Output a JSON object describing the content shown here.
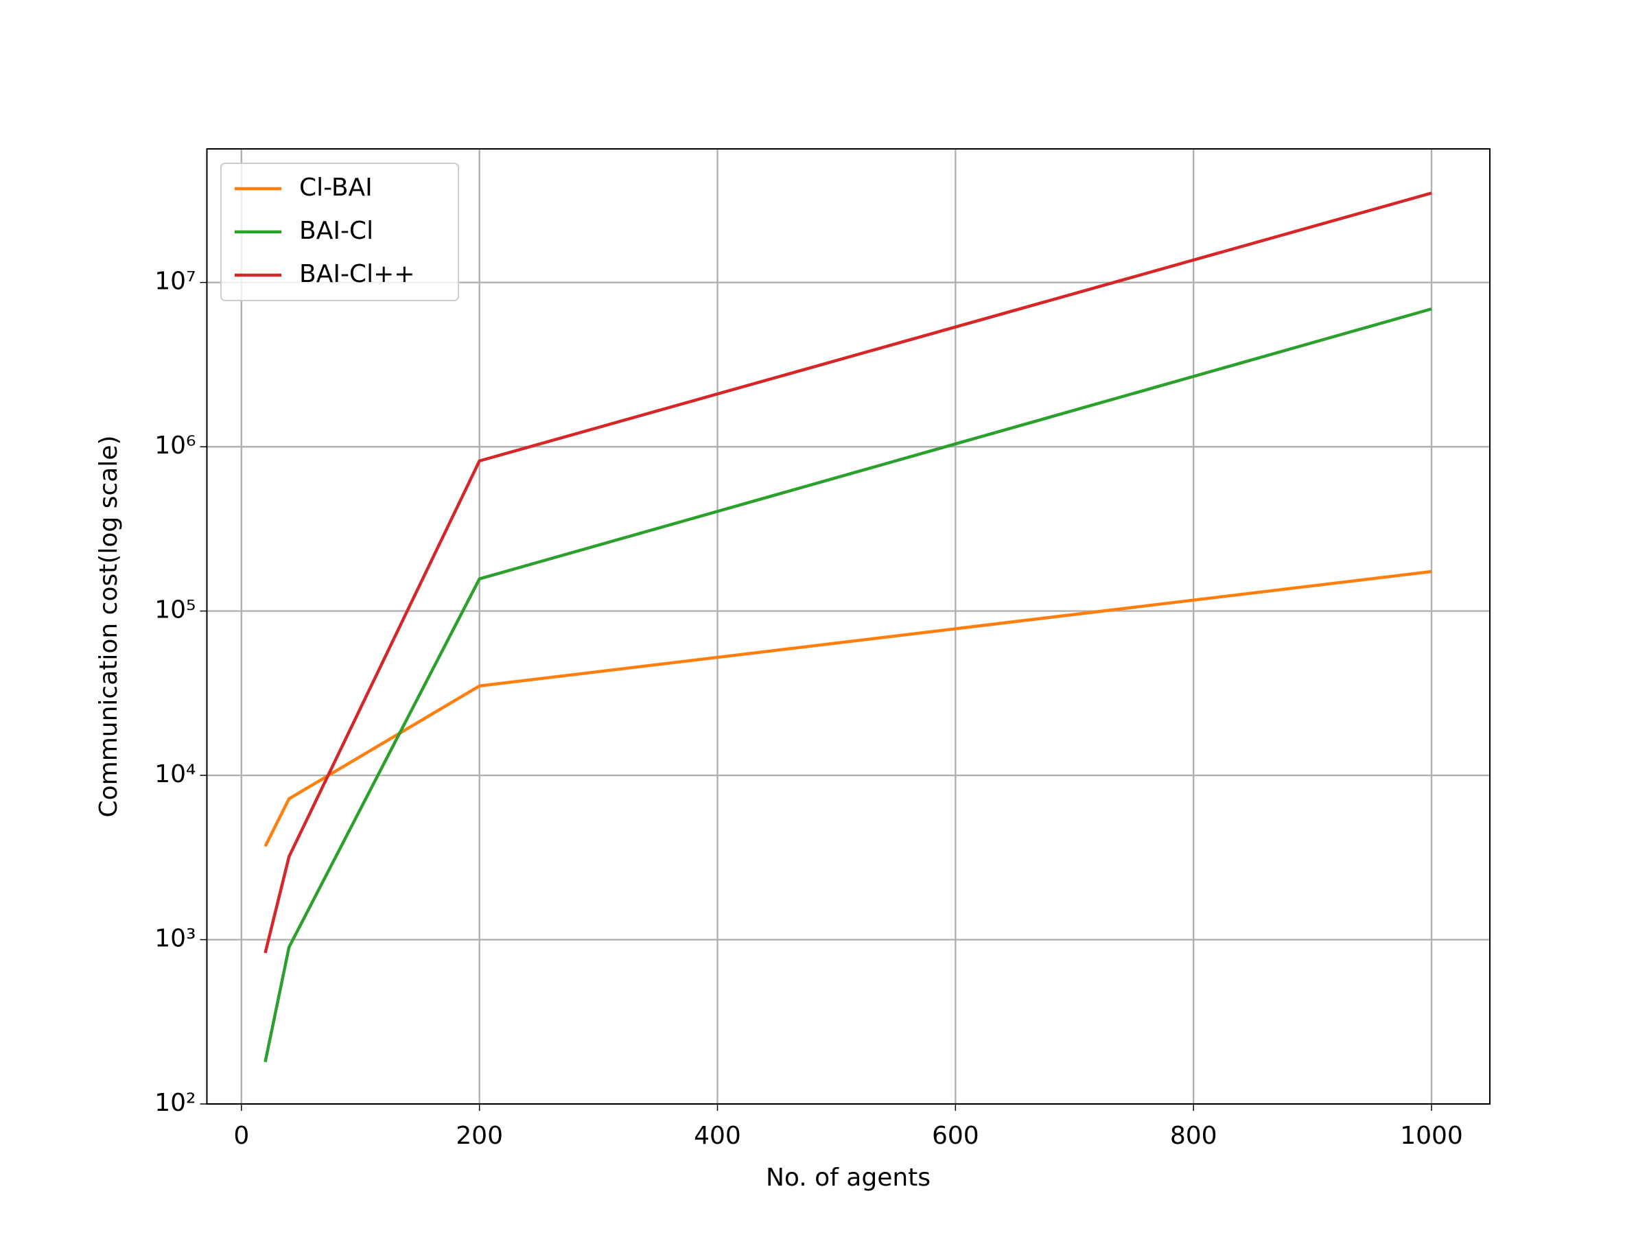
{
  "chart_data": {
    "type": "line",
    "xlabel": "No. of agents",
    "ylabel": "Communication cost(log scale)",
    "x": [
      20,
      40,
      200,
      1000
    ],
    "series": [
      {
        "name": "Cl-BAI",
        "color": "#ff7f0e",
        "values": [
          3700,
          7200,
          35000,
          174000
        ]
      },
      {
        "name": "BAI-Cl",
        "color": "#2ca02c",
        "values": [
          180,
          900,
          157000,
          6900000
        ]
      },
      {
        "name": "BAI-Cl++",
        "color": "#d62728",
        "values": [
          830,
          3200,
          820000,
          35000000
        ]
      }
    ],
    "xlim": [
      -29,
      1049
    ],
    "ylim": [
      100,
      65000000
    ],
    "xticks": [
      0,
      200,
      400,
      600,
      800,
      1000
    ],
    "yticks": [
      {
        "value": 100,
        "label": "10²"
      },
      {
        "value": 1000,
        "label": "10³"
      },
      {
        "value": 10000,
        "label": "10⁴"
      },
      {
        "value": 100000,
        "label": "10⁵"
      },
      {
        "value": 1000000,
        "label": "10⁶"
      },
      {
        "value": 10000000,
        "label": "10⁷"
      }
    ],
    "yscale": "log",
    "grid": true,
    "legend": "upper-left"
  }
}
